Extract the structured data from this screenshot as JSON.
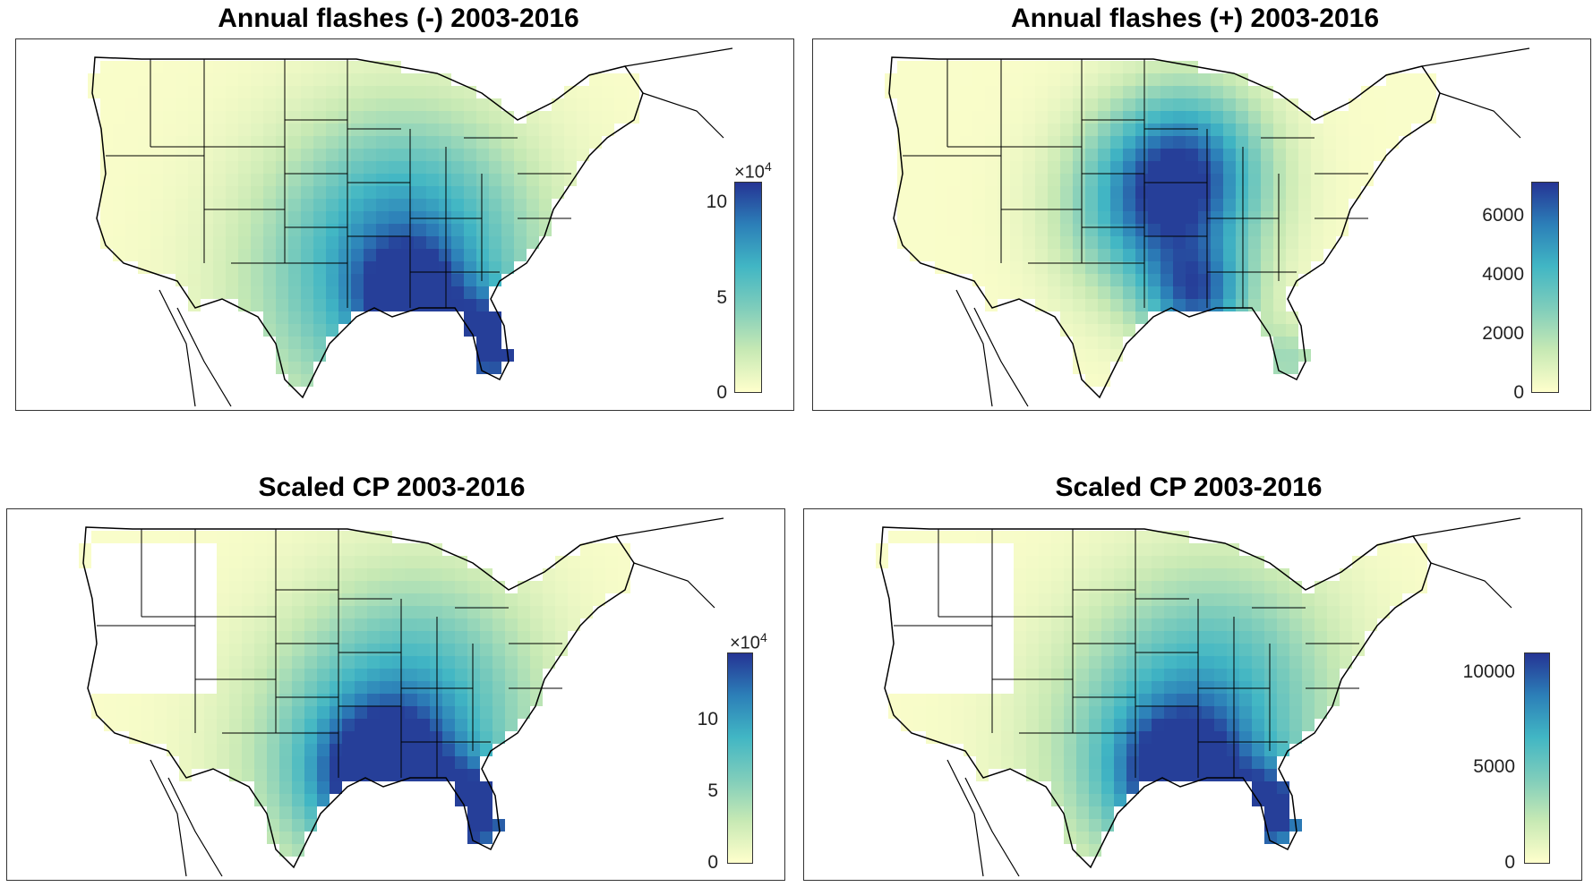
{
  "panels": [
    {
      "id": "neg",
      "title": "Annual flashes (-) 2003-2016",
      "colorbar": {
        "ticks": [
          "10",
          "5",
          "0"
        ],
        "multiplier": "×10",
        "exponent": "4"
      }
    },
    {
      "id": "pos",
      "title": "Annual flashes (+) 2003-2016",
      "colorbar": {
        "ticks": [
          "6000",
          "4000",
          "2000",
          "0"
        ],
        "multiplier": "",
        "exponent": ""
      }
    },
    {
      "id": "cpneg",
      "title": "Scaled CP 2003-2016",
      "colorbar": {
        "ticks": [
          "10",
          "5",
          "0"
        ],
        "multiplier": "×10",
        "exponent": "4"
      }
    },
    {
      "id": "cppos",
      "title": "Scaled CP 2003-2016",
      "colorbar": {
        "ticks": [
          "10000",
          "5000",
          "0"
        ],
        "multiplier": "",
        "exponent": ""
      }
    }
  ],
  "colors": {
    "low": "#ffffcc",
    "mid_low": "#c7e9b4",
    "mid": "#7fcdbb",
    "mid_high": "#41b6c4",
    "high": "#2c7fb8",
    "max": "#253494",
    "border": "#000000"
  }
}
